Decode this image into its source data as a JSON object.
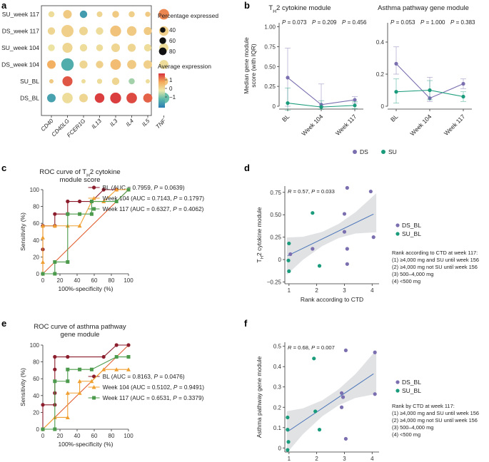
{
  "panel_labels": [
    "a",
    "b",
    "c",
    "d",
    "e",
    "f"
  ],
  "chart_data": [
    {
      "id": "a",
      "type": "heatmap",
      "rows": [
        "SU_week 117",
        "DS_week 117",
        "SU_week 104",
        "DS_week 104",
        "SU_BL",
        "DS_BL"
      ],
      "genes": [
        "CD40",
        "CD40LG",
        "FCER1G",
        "IL13",
        "IL3",
        "IL4",
        "IL5",
        "TNF"
      ],
      "pct": [
        [
          20,
          40,
          30,
          18,
          25,
          20,
          15,
          60
        ],
        [
          30,
          80,
          40,
          30,
          65,
          50,
          35,
          50
        ],
        [
          25,
          55,
          30,
          25,
          40,
          35,
          30,
          45
        ],
        [
          40,
          85,
          35,
          30,
          60,
          45,
          40,
          45
        ],
        [
          10,
          55,
          10,
          15,
          30,
          20,
          10,
          40
        ],
        [
          40,
          60,
          40,
          50,
          65,
          60,
          45,
          65
        ]
      ],
      "expr": [
        [
          0.2,
          0.5,
          -1.5,
          0.3,
          0.5,
          0.4,
          0.5,
          1.3
        ],
        [
          0.3,
          0.4,
          0.3,
          0.2,
          0.6,
          0.5,
          0.5,
          0.4
        ],
        [
          0.1,
          0.3,
          0.2,
          0.2,
          0.3,
          0.3,
          0.2,
          0.2
        ],
        [
          0.9,
          -1.2,
          0.3,
          0.4,
          0.7,
          0.5,
          0.4,
          0.2
        ],
        [
          0.5,
          1.7,
          0.2,
          0.2,
          0.3,
          -0.5,
          0.2,
          0.6
        ],
        [
          -1.4,
          0.2,
          0.3,
          1.9,
          1.9,
          1.8,
          1.6,
          -0.9
        ]
      ],
      "size_legend_title": "Percentage expressed",
      "size_legend": [
        40,
        60,
        80
      ],
      "color_legend_title": "Average expression",
      "color_ticks": [
        "1",
        "0",
        "−1"
      ]
    },
    {
      "id": "b1",
      "type": "line",
      "title_main": "T",
      "title_sub": "H",
      "title_rest": "2 cytokine module",
      "ylabel": "Median gene module score (with IQR)",
      "ylabel_line1": "Median gene module",
      "ylabel_line2": "score (with IQR)",
      "categories": [
        "BL",
        "Week 104",
        "Week 117"
      ],
      "pvalues": [
        "0.073",
        "0.209",
        "0.456"
      ],
      "yticks": [
        "0",
        "0.25",
        "0.50",
        "0.75",
        "1.00"
      ],
      "ylim": [
        0,
        1.05
      ],
      "series": [
        {
          "name": "DS",
          "values": [
            0.36,
            0.02,
            0.08
          ],
          "err": [
            [
              0,
              0.73
            ],
            [
              0,
              0.28
            ],
            [
              0.04,
              0.12
            ]
          ]
        },
        {
          "name": "SU",
          "values": [
            0.04,
            -0.01,
            0.01
          ],
          "err": [
            [
              -0.05,
              0.23
            ],
            [
              -0.04,
              0.07
            ],
            [
              -0.03,
              0.06
            ]
          ]
        }
      ]
    },
    {
      "id": "b2",
      "type": "line",
      "title": "Asthma pathway gene module",
      "categories": [
        "BL",
        "Week 104",
        "Week 117"
      ],
      "pvalues": [
        "0.053",
        "1.000",
        "0.383"
      ],
      "yticks": [
        "0",
        "0.2",
        "0.4"
      ],
      "ylim": [
        0,
        0.52
      ],
      "series": [
        {
          "name": "DS",
          "values": [
            0.265,
            0.05,
            0.14
          ],
          "err": [
            [
              0.2,
              0.37
            ],
            [
              0.03,
              0.18
            ],
            [
              0.11,
              0.17
            ]
          ]
        },
        {
          "name": "SU",
          "values": [
            0.09,
            0.1,
            0.06
          ],
          "err": [
            [
              0.02,
              0.17
            ],
            [
              0.04,
              0.16
            ],
            [
              0.03,
              0.09
            ]
          ]
        }
      ]
    },
    {
      "id": "c",
      "type": "line",
      "title_line1": "ROC curve of T",
      "title_sub": "H",
      "title_line1b": "2 cytokine",
      "title_line2": "module score",
      "xlabel": "100%-specificity (%)",
      "ylabel": "Sensitivity (%)",
      "ticks": [
        "0",
        "20",
        "40",
        "60",
        "80",
        "100"
      ],
      "series": [
        {
          "name": "BL",
          "auc": "0.7959",
          "p": "0.0639",
          "x": [
            0,
            0,
            0,
            14,
            14,
            29,
            29,
            43,
            57,
            71,
            86,
            100
          ],
          "y": [
            0,
            29,
            57,
            57,
            71,
            71,
            86,
            86,
            86,
            100,
            100,
            100
          ]
        },
        {
          "name": "Week 104",
          "auc": "0.7143",
          "p": "0.1797",
          "x": [
            0,
            0,
            0,
            0,
            14,
            29,
            43,
            57,
            71,
            86,
            100
          ],
          "y": [
            0,
            14,
            43,
            57,
            57,
            57,
            57,
            86,
            86,
            100,
            100
          ]
        },
        {
          "name": "Week 117",
          "auc": "0.6327",
          "p": "0.4062",
          "x": [
            0,
            14,
            14,
            29,
            29,
            43,
            57,
            57,
            86,
            100
          ],
          "y": [
            0,
            0,
            14,
            14,
            71,
            71,
            71,
            86,
            86,
            100
          ]
        }
      ]
    },
    {
      "id": "d",
      "type": "scatter",
      "ylabel_main": "T",
      "ylabel_sub": "H",
      "ylabel_rest": "2 cytokine module",
      "xlabel": "Rank according to CTD",
      "annotation": "R = 0.57, P = 0.033",
      "xticks": [
        "1",
        "2",
        "3",
        "4"
      ],
      "yticks": [
        "−0.25",
        "0",
        "0.25",
        "0.50",
        "0.75"
      ],
      "xlim": [
        0.85,
        4.25
      ],
      "ylim": [
        -0.27,
        0.82
      ],
      "fit": {
        "x0": 1,
        "y0": 0.05,
        "x1": 4,
        "y1": 0.5
      },
      "series": [
        {
          "name": "DS_BL",
          "points": [
            [
              1.05,
              0.06
            ],
            [
              3.0,
              0.51
            ],
            [
              3.0,
              0.31
            ],
            [
              3.1,
              0.8
            ],
            [
              3.1,
              0.12
            ],
            [
              3.1,
              -0.05
            ],
            [
              3.95,
              0.76
            ],
            [
              4.05,
              0.25
            ],
            [
              1.85,
              0.12
            ]
          ]
        },
        {
          "name": "SU_BL",
          "points": [
            [
              1.0,
              0.18
            ],
            [
              0.98,
              -0.01
            ],
            [
              1.0,
              -0.13
            ],
            [
              1.85,
              0.52
            ],
            [
              2.1,
              -0.07
            ]
          ]
        }
      ],
      "rank_title": "Rank according to CTD at week 117:",
      "rank_items": [
        "(1) ≥4,000 mg and SU until week 156",
        "(2) ≥4,000 mg not SU until week 156",
        "(3) 500–4,000 mg",
        "(4) <500 mg"
      ]
    },
    {
      "id": "e",
      "type": "line",
      "title_line1": "ROC curve of asthma pathway",
      "title_line2": "gene module",
      "xlabel": "100%-specificity (%)",
      "ylabel": "Sensitivity (%)",
      "ticks": [
        "0",
        "20",
        "40",
        "60",
        "80",
        "100"
      ],
      "series": [
        {
          "name": "BL",
          "auc": "0.8163",
          "p": "0.0476",
          "x": [
            0,
            0,
            14,
            14,
            14,
            14,
            29,
            71,
            86,
            100
          ],
          "y": [
            0,
            29,
            29,
            43,
            71,
            86,
            86,
            86,
            100,
            100
          ]
        },
        {
          "name": "Week 104",
          "auc": "0.5102",
          "p": "0.9491",
          "x": [
            0,
            14,
            29,
            29,
            43,
            43,
            57,
            71,
            86,
            100
          ],
          "y": [
            0,
            14,
            14,
            43,
            43,
            57,
            57,
            71,
            71,
            71
          ]
        },
        {
          "name": "Week 117",
          "auc": "0.6531",
          "p": "0.3379",
          "x": [
            0,
            14,
            14,
            29,
            29,
            43,
            57,
            86,
            100
          ],
          "y": [
            0,
            0,
            57,
            57,
            71,
            71,
            71,
            86,
            86
          ]
        }
      ]
    },
    {
      "id": "f",
      "type": "scatter",
      "ylabel": "Asthma pathway gene module",
      "xlabel": "Rank according to CTD",
      "annotation": "R = 0.68, P = 0.007",
      "xticks": [
        "1",
        "2",
        "3",
        "4"
      ],
      "yticks": [
        "0",
        "0.1",
        "0.2",
        "0.3",
        "0.4",
        "0.5"
      ],
      "xlim": [
        0.85,
        4.25
      ],
      "ylim": [
        -0.02,
        0.52
      ],
      "fit": {
        "x0": 1,
        "y0": 0.085,
        "x1": 4,
        "y1": 0.36
      },
      "series": [
        {
          "name": "DS_BL",
          "points": [
            [
              2.9,
              0.27
            ],
            [
              2.95,
              0.25
            ],
            [
              2.9,
              0.2
            ],
            [
              3.05,
              0.48
            ],
            [
              3.05,
              0.045
            ],
            [
              4.1,
              0.47
            ],
            [
              4.1,
              0.265
            ]
          ]
        },
        {
          "name": "SU_BL",
          "points": [
            [
              0.95,
              0.15
            ],
            [
              0.95,
              0.09
            ],
            [
              0.98,
              0.03
            ],
            [
              0.95,
              -0.01
            ],
            [
              1.9,
              0.44
            ],
            [
              1.95,
              0.18
            ],
            [
              2.1,
              0.09
            ]
          ]
        }
      ],
      "rank_title": "Rank by CTD at week 117:",
      "rank_items": [
        "(1) ≥4,000 mg and SU until week 156",
        "(2) ≥4,000 mg not SU until week 156",
        "(3) 500–4,000 mg",
        "(4) <500 mg"
      ]
    }
  ],
  "legend_b": [
    {
      "name": "DS"
    },
    {
      "name": "SU"
    }
  ],
  "colors": {
    "DS": "#7b6fb0",
    "SU": "#1a9c7c",
    "BL": "#8b1d2c",
    "W104": "#f0a030",
    "W117": "#4c9a4c",
    "diag": "#e05a2a",
    "fit": "#4a74b8",
    "band": "#d6d8db"
  }
}
